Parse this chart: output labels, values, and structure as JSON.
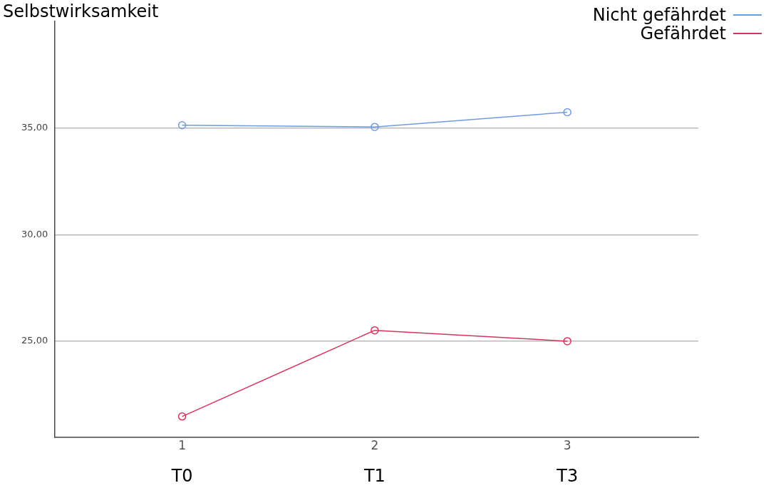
{
  "chart_data": {
    "type": "line",
    "title": "Selbstwirksamkeit",
    "x": [
      1,
      2,
      3
    ],
    "series": [
      {
        "name": "Nicht gefährdet",
        "color": "#6f9be0",
        "values": [
          35.13,
          35.05,
          35.74
        ]
      },
      {
        "name": "Gefährdet",
        "color": "#d6325f",
        "values": [
          21.47,
          25.51,
          25.0
        ]
      }
    ],
    "xlim": [
      0.34,
      3.68
    ],
    "xticks": [
      1,
      2,
      3
    ],
    "ylim": [
      20.5,
      40
    ],
    "yticks": [
      {
        "value": 25,
        "label": "25,00"
      },
      {
        "value": 30,
        "label": "30,00"
      },
      {
        "value": 35,
        "label": "35,00"
      }
    ],
    "annotations": [
      "T0",
      "T1",
      "T3"
    ],
    "grid": "y",
    "legend": "top right",
    "marker": "circle",
    "line_style": "solid"
  }
}
